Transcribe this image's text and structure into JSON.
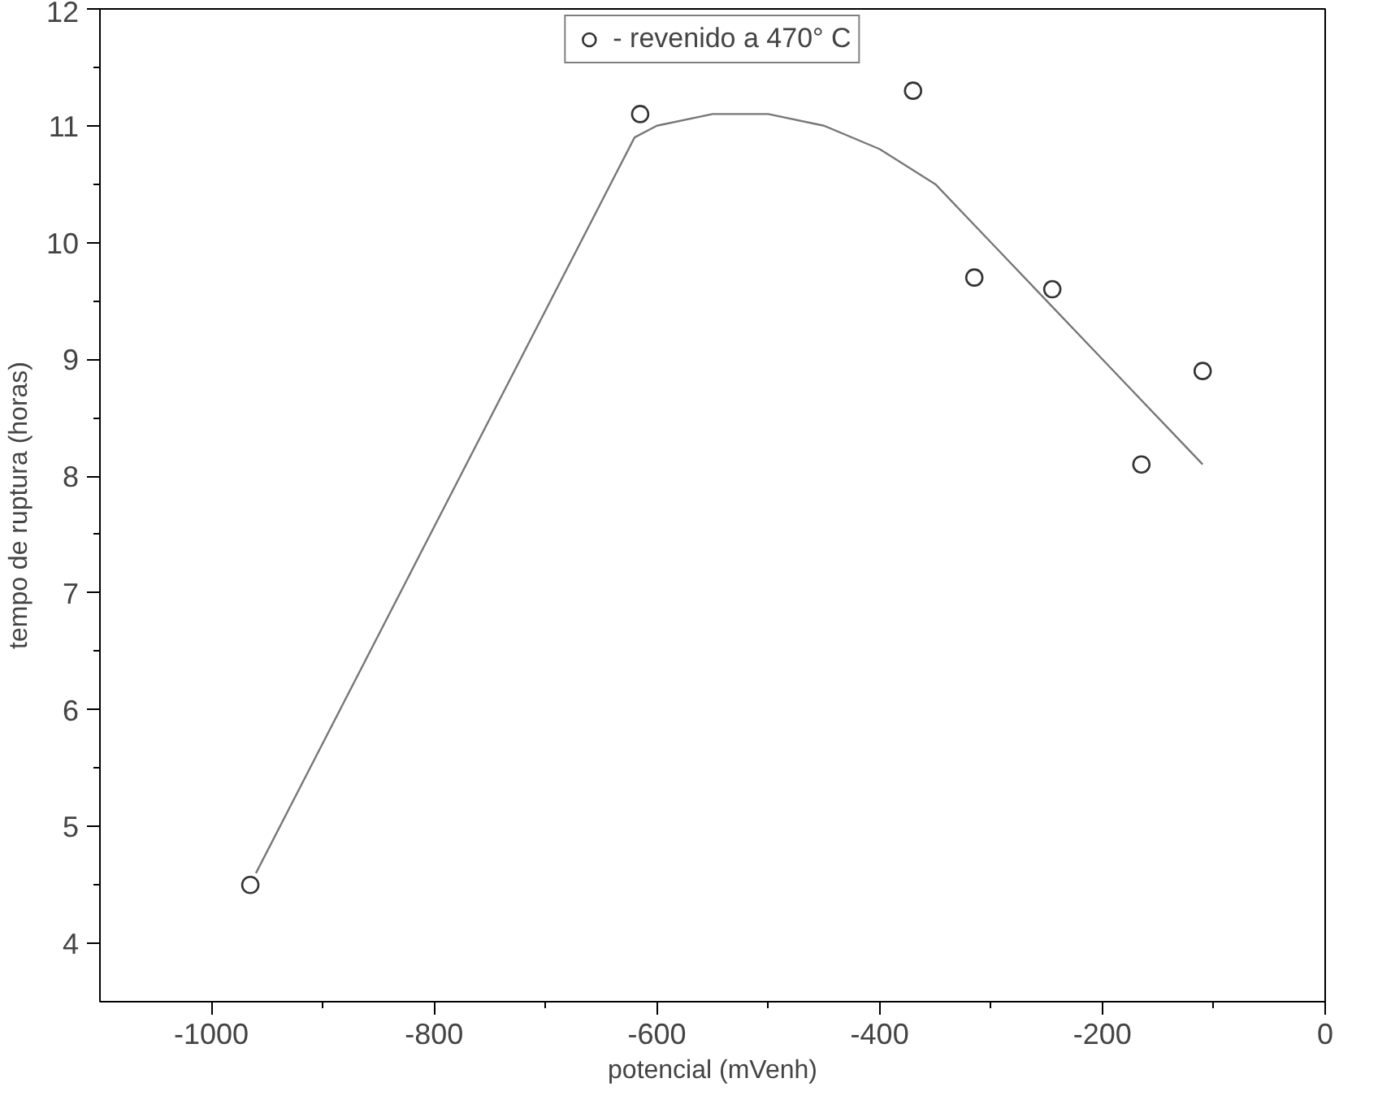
{
  "chart_data": {
    "type": "scatter",
    "xlabel": "potencial (mVenh)",
    "ylabel": "tempo de ruptura (horas)",
    "xlim": [
      -1100,
      0
    ],
    "ylim": [
      3.5,
      12
    ],
    "xticks": [
      -1000,
      -800,
      -600,
      -400,
      -200,
      0
    ],
    "yticks": [
      4,
      5,
      6,
      7,
      8,
      9,
      10,
      11,
      12
    ],
    "grid": false,
    "legend": "top",
    "series": [
      {
        "name": "- revenido a 470° C",
        "marker": "circle",
        "color": "#333333",
        "x": [
          -965,
          -615,
          -370,
          -315,
          -245,
          -165,
          -110
        ],
        "values": [
          4.5,
          11.1,
          11.3,
          9.7,
          9.6,
          8.1,
          8.9
        ]
      },
      {
        "type": "line",
        "color": "#777777",
        "line_style": "solid",
        "x": [
          -960,
          -620,
          -600,
          -550,
          -500,
          -450,
          -400,
          -350,
          -300,
          -250,
          -200,
          -150,
          -110
        ],
        "values": [
          4.6,
          10.9,
          11.0,
          11.1,
          11.1,
          11.0,
          10.8,
          10.5,
          10.0,
          9.5,
          9.0,
          8.5,
          8.1
        ]
      }
    ]
  }
}
